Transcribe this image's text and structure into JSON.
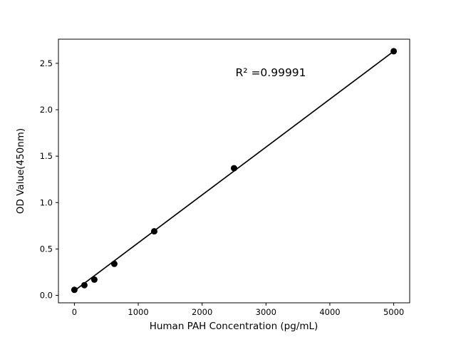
{
  "figure": {
    "background": "#ffffff"
  },
  "chart_data": {
    "type": "scatter",
    "title": "",
    "xlabel": "Human PAH Concentration (pg/mL)",
    "ylabel": "OD Value(450nm)",
    "x": [
      0,
      156.25,
      312.5,
      625,
      1250,
      2500,
      5000
    ],
    "y": [
      0.06,
      0.11,
      0.17,
      0.34,
      0.69,
      1.37,
      2.63
    ],
    "fit_line": {
      "x": [
        0,
        5000
      ],
      "y": [
        0.05,
        2.63
      ]
    },
    "annotation": {
      "text": "R² =0.99991",
      "x": 3075,
      "y": 2.4
    },
    "xlim": [
      -250,
      5250
    ],
    "ylim": [
      -0.08,
      2.76
    ],
    "xticks": [
      0,
      1000,
      2000,
      3000,
      4000,
      5000
    ],
    "xtick_labels": [
      "0",
      "1000",
      "2000",
      "3000",
      "4000",
      "5000"
    ],
    "yticks": [
      0,
      0.5,
      1.0,
      1.5,
      2.0,
      2.5
    ],
    "ytick_labels": [
      "0.0",
      "0.5",
      "1.0",
      "1.5",
      "2.0",
      "2.5"
    ],
    "grid": false,
    "legend": null,
    "marker_color": "#000000",
    "line_color": "#000000",
    "axis_color": "#000000",
    "background": "#ffffff"
  }
}
